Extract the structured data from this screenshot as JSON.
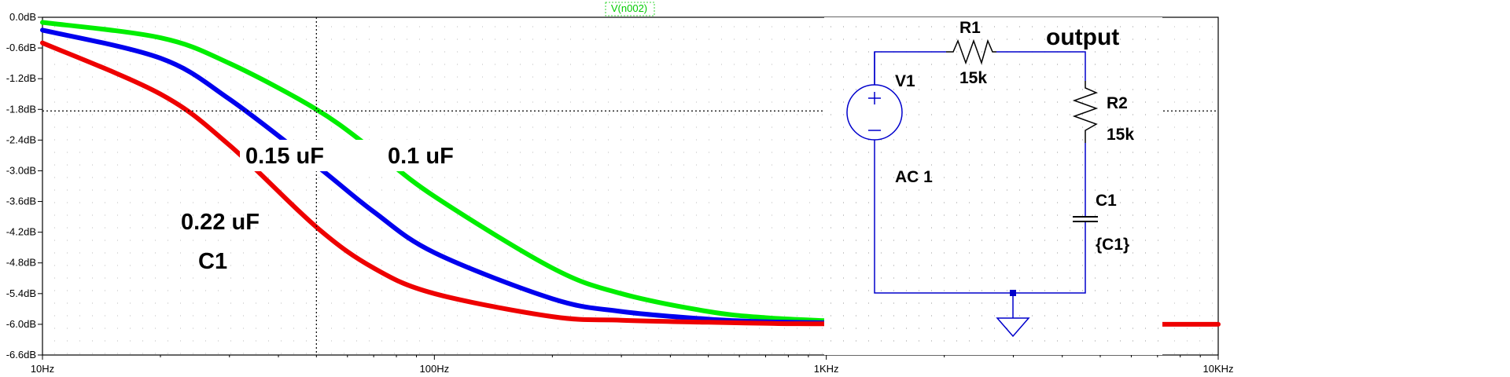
{
  "chart_data": {
    "type": "line",
    "x_scale": "log",
    "x_unit": "Hz",
    "y_unit": "dB",
    "xlim": [
      10,
      10000
    ],
    "ylim": [
      -6.6,
      0.0
    ],
    "trace_name": "V(n002)",
    "x_ticks": [
      {
        "value": 10,
        "label": "10Hz"
      },
      {
        "value": 100,
        "label": "100Hz"
      },
      {
        "value": 1000,
        "label": "1KHz"
      },
      {
        "value": 10000,
        "label": "10KHz"
      }
    ],
    "y_ticks": [
      {
        "value": 0.0,
        "label": "0.0dB"
      },
      {
        "value": -0.6,
        "label": "-0.6dB"
      },
      {
        "value": -1.2,
        "label": "-1.2dB"
      },
      {
        "value": -1.8,
        "label": "-1.8dB"
      },
      {
        "value": -2.4,
        "label": "-2.4dB"
      },
      {
        "value": -3.0,
        "label": "-3.0dB"
      },
      {
        "value": -3.6,
        "label": "-3.6dB"
      },
      {
        "value": -4.2,
        "label": "-4.2dB"
      },
      {
        "value": -4.8,
        "label": "-4.8dB"
      },
      {
        "value": -5.4,
        "label": "-5.4dB"
      },
      {
        "value": -6.0,
        "label": "-6.0dB"
      },
      {
        "value": -6.6,
        "label": "-6.6dB"
      }
    ],
    "cursor": {
      "x": 50,
      "y": -1.83
    },
    "series": [
      {
        "name": "0.1 uF",
        "color": "#00ee00",
        "x": [
          10,
          20,
          30,
          50,
          70,
          100,
          200,
          300,
          500,
          700,
          1000
        ],
        "y": [
          -0.1,
          -0.4,
          -0.9,
          -1.8,
          -2.6,
          -3.5,
          -4.9,
          -5.4,
          -5.75,
          -5.87,
          -5.93
        ]
      },
      {
        "name": "0.15 uF",
        "color": "#0000ee",
        "x": [
          10,
          20,
          30,
          50,
          70,
          100,
          200,
          300,
          500,
          700,
          1000
        ],
        "y": [
          -0.25,
          -0.8,
          -1.6,
          -2.9,
          -3.8,
          -4.6,
          -5.5,
          -5.75,
          -5.9,
          -5.95,
          -5.97
        ]
      },
      {
        "name": "0.22 uF",
        "color": "#ee0000",
        "x": [
          10,
          20,
          30,
          50,
          70,
          100,
          200,
          300,
          500,
          700,
          1000,
          7000,
          10000
        ],
        "y": [
          -0.5,
          -1.5,
          -2.5,
          -4.1,
          -4.9,
          -5.4,
          -5.85,
          -5.92,
          -5.96,
          -5.98,
          -5.99,
          -6.0,
          -6.0
        ]
      }
    ],
    "annotations": [
      {
        "text": "0.15 uF"
      },
      {
        "text": "0.1 uF"
      },
      {
        "text": "0.22 uF"
      },
      {
        "text": "C1"
      }
    ]
  },
  "schematic": {
    "r1_name": "R1",
    "r1_value": "15k",
    "r2_name": "R2",
    "r2_value": "15k",
    "output_label": "output",
    "v1_name": "V1",
    "v1_value": "AC 1",
    "c1_name": "C1",
    "c1_value": "{C1}",
    "wire_color": "#0000cc",
    "symbol_color": "#0000cc"
  }
}
